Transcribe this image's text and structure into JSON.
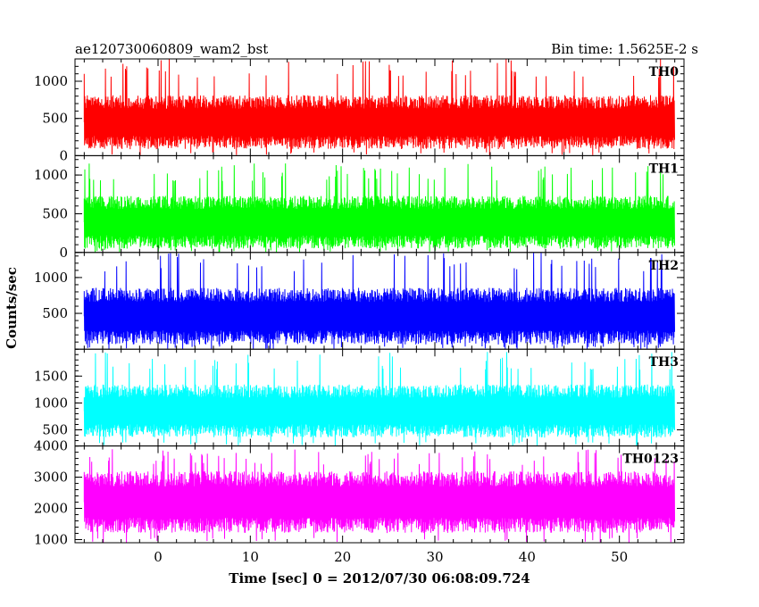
{
  "header": {
    "left_title": "ae120730060809_wam2_bst",
    "right_title": "Bin time: 1.5625E-2 s"
  },
  "chart_data": {
    "type": "line",
    "style": "stepped light curve, 5 stacked panels sharing the x axis",
    "bin_time_s": 0.015625,
    "xlabel": "Time [sec] 0 = 2012/07/30 06:08:09.724",
    "ylabel": "Counts/sec",
    "xlim": [
      -9,
      57
    ],
    "x_data_range": [
      -8,
      56
    ],
    "xticks": [
      0,
      10,
      20,
      30,
      40,
      50
    ],
    "panels": [
      {
        "name": "TH0",
        "color": "#ff0000",
        "ylim": [
          0,
          1300
        ],
        "yticks": [
          0,
          500,
          1000
        ],
        "ytick_labels": [
          "0",
          "500",
          "1000"
        ],
        "typical_range": [
          120,
          780
        ],
        "peak": 1300
      },
      {
        "name": "TH1",
        "color": "#00ff00",
        "ylim": [
          0,
          1250
        ],
        "yticks": [
          0,
          500,
          1000
        ],
        "ytick_labels": [
          "0",
          "500",
          "1000"
        ],
        "typical_range": [
          80,
          700
        ],
        "peak": 1150
      },
      {
        "name": "TH2",
        "color": "#0000ff",
        "ylim": [
          0,
          1350
        ],
        "yticks": [
          500,
          1000
        ],
        "ytick_labels": [
          "500",
          "1000"
        ],
        "typical_range": [
          100,
          820
        ],
        "peak": 1350
      },
      {
        "name": "TH3",
        "color": "#00ffff",
        "ylim": [
          200,
          2000
        ],
        "yticks": [
          500,
          1000,
          1500
        ],
        "ytick_labels": [
          "500",
          "1000",
          "1500"
        ],
        "typical_range": [
          400,
          1300
        ],
        "peak": 1950
      },
      {
        "name": "TH0123",
        "color": "#ff00ff",
        "ylim": [
          900,
          4000
        ],
        "yticks": [
          1000,
          2000,
          3000,
          4000
        ],
        "ytick_labels": [
          "1000",
          "2000",
          "3000",
          "4000"
        ],
        "typical_range": [
          1300,
          3100
        ],
        "peak": 3900
      }
    ]
  }
}
